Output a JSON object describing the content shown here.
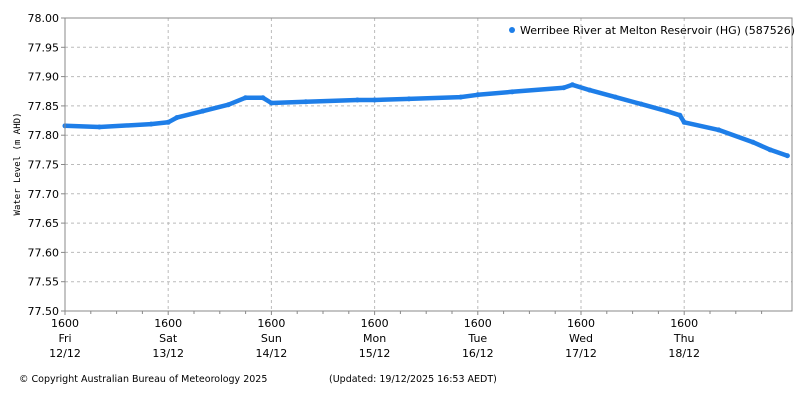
{
  "chart_data": {
    "type": "scatter",
    "ylabel": "Water Level (m AHD)",
    "ylim": [
      77.5,
      78.0
    ],
    "yticks": [
      "77.50",
      "77.55",
      "77.60",
      "77.65",
      "77.70",
      "77.75",
      "77.80",
      "77.85",
      "77.90",
      "77.95",
      "78.00"
    ],
    "xlim": [
      "2025-12-12T16:00",
      "2025-12-19T17:00"
    ],
    "xticks": [
      {
        "time": "2025-12-12T16:00",
        "l1": "1600",
        "l2": "Fri",
        "l3": "12/12"
      },
      {
        "time": "2025-12-13T16:00",
        "l1": "1600",
        "l2": "Sat",
        "l3": "13/12"
      },
      {
        "time": "2025-12-14T16:00",
        "l1": "1600",
        "l2": "Sun",
        "l3": "14/12"
      },
      {
        "time": "2025-12-15T16:00",
        "l1": "1600",
        "l2": "Mon",
        "l3": "15/12"
      },
      {
        "time": "2025-12-16T16:00",
        "l1": "1600",
        "l2": "Tue",
        "l3": "16/12"
      },
      {
        "time": "2025-12-17T16:00",
        "l1": "1600",
        "l2": "Wed",
        "l3": "17/12"
      },
      {
        "time": "2025-12-18T16:00",
        "l1": "1600",
        "l2": "Thu",
        "l3": "18/12"
      }
    ],
    "grid": true,
    "legend_placement": "top-right",
    "series": [
      {
        "name": "Werribee River at Melton Reservoir (HG) (587526)",
        "color": "#1e7ee8",
        "points": [
          [
            "2025-12-12T16:00",
            77.816
          ],
          [
            "2025-12-13T00:00",
            77.814
          ],
          [
            "2025-12-13T12:00",
            77.819
          ],
          [
            "2025-12-13T16:00",
            77.822
          ],
          [
            "2025-12-13T18:00",
            77.83
          ],
          [
            "2025-12-14T00:00",
            77.841
          ],
          [
            "2025-12-14T06:00",
            77.852
          ],
          [
            "2025-12-14T10:00",
            77.864
          ],
          [
            "2025-12-14T14:00",
            77.864
          ],
          [
            "2025-12-14T16:00",
            77.855
          ],
          [
            "2025-12-15T00:00",
            77.857
          ],
          [
            "2025-12-15T12:00",
            77.86
          ],
          [
            "2025-12-15T16:00",
            77.86
          ],
          [
            "2025-12-16T00:00",
            77.862
          ],
          [
            "2025-12-16T12:00",
            77.865
          ],
          [
            "2025-12-16T16:00",
            77.869
          ],
          [
            "2025-12-17T00:00",
            77.874
          ],
          [
            "2025-12-17T12:00",
            77.881
          ],
          [
            "2025-12-17T14:00",
            77.886
          ],
          [
            "2025-12-17T18:00",
            77.877
          ],
          [
            "2025-12-18T00:00",
            77.865
          ],
          [
            "2025-12-18T06:00",
            77.853
          ],
          [
            "2025-12-18T12:00",
            77.841
          ],
          [
            "2025-12-18T15:00",
            77.834
          ],
          [
            "2025-12-18T16:00",
            77.822
          ],
          [
            "2025-12-19T00:00",
            77.809
          ],
          [
            "2025-12-19T08:00",
            77.788
          ],
          [
            "2025-12-19T12:00",
            77.775
          ],
          [
            "2025-12-19T16:00",
            77.765
          ]
        ]
      }
    ]
  },
  "footer": {
    "copyright": "© Copyright Australian Bureau of Meteorology 2025",
    "updated": "(Updated: 19/12/2025 16:53 AEDT)"
  }
}
